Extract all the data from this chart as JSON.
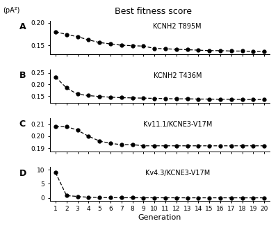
{
  "title": "Best fitness score",
  "ylabel": "(pA²)",
  "xlabel": "Generation",
  "generations": [
    1,
    2,
    3,
    4,
    5,
    6,
    7,
    8,
    9,
    10,
    11,
    12,
    13,
    14,
    15,
    16,
    17,
    18,
    19,
    20
  ],
  "subplots": [
    {
      "label": "A",
      "title": "KCNH2 T895M",
      "ylim": [
        0.13,
        0.205
      ],
      "yticks": [
        0.15,
        0.2
      ],
      "yticklabels": [
        "0.15",
        "0.20"
      ],
      "data": [
        0.18,
        0.174,
        0.169,
        0.162,
        0.156,
        0.153,
        0.15,
        0.149,
        0.148,
        0.143,
        0.142,
        0.141,
        0.14,
        0.139,
        0.138,
        0.138,
        0.137,
        0.137,
        0.136,
        0.136
      ]
    },
    {
      "label": "B",
      "title": "KCNH2 T436M",
      "ylim": [
        0.12,
        0.265
      ],
      "yticks": [
        0.15,
        0.2,
        0.25
      ],
      "yticklabels": [
        "0.15",
        "0.20",
        "0.25"
      ],
      "data": [
        0.232,
        0.185,
        0.158,
        0.152,
        0.148,
        0.145,
        0.143,
        0.142,
        0.141,
        0.14,
        0.139,
        0.138,
        0.138,
        0.137,
        0.137,
        0.136,
        0.136,
        0.135,
        0.135,
        0.135
      ]
    },
    {
      "label": "C",
      "title": "Kv11.1/KCNE3-V17M",
      "ylim": [
        0.187,
        0.215
      ],
      "yticks": [
        0.19,
        0.2,
        0.21
      ],
      "yticklabels": [
        "0.19",
        "0.20",
        "0.21"
      ],
      "data": [
        0.208,
        0.208,
        0.205,
        0.2,
        0.196,
        0.194,
        0.193,
        0.193,
        0.192,
        0.192,
        0.192,
        0.192,
        0.192,
        0.192,
        0.192,
        0.192,
        0.192,
        0.192,
        0.192,
        0.192
      ]
    },
    {
      "label": "D",
      "title": "Kv4.3/KCNE3-V17M",
      "ylim": [
        -1.0,
        11.0
      ],
      "yticks": [
        0,
        5,
        10
      ],
      "yticklabels": [
        "0",
        "5",
        "10"
      ],
      "data": [
        9.0,
        0.8,
        0.5,
        0.2,
        0.1,
        0.05,
        0.04,
        0.03,
        0.02,
        0.02,
        0.02,
        0.02,
        0.01,
        0.01,
        0.01,
        0.01,
        0.01,
        0.0,
        0.0,
        0.0
      ]
    }
  ]
}
